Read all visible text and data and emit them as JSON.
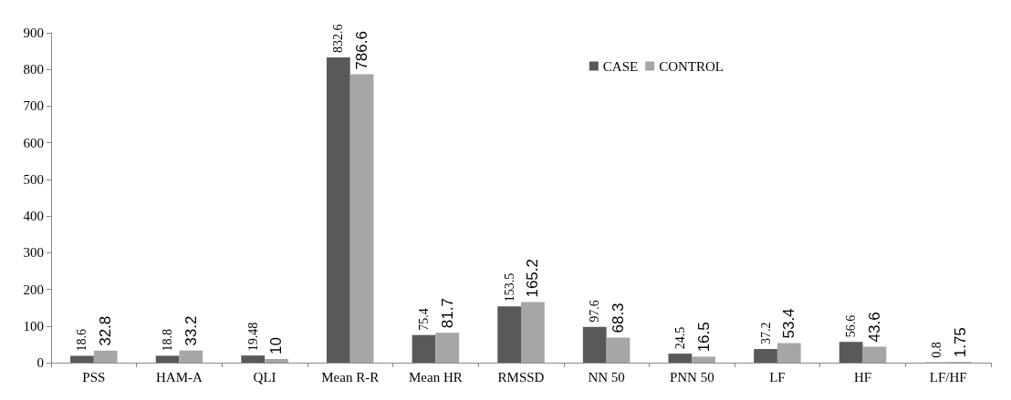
{
  "chart_data": {
    "type": "bar",
    "categories": [
      "PSS",
      "HAM-A",
      "QLI",
      "Mean R-R",
      "Mean HR",
      "RMSSD",
      "NN 50",
      "PNN 50",
      "LF",
      "HF",
      "LF/HF"
    ],
    "series": [
      {
        "name": "CASE",
        "color": "#595959",
        "values": [
          18.6,
          18.8,
          19.48,
          832.6,
          75.4,
          153.5,
          97.6,
          24.5,
          37.2,
          56.6,
          0.8
        ]
      },
      {
        "name": "CONTROL",
        "color": "#a6a6a6",
        "values": [
          32.8,
          33.2,
          10,
          786.6,
          81.7,
          165.2,
          68.3,
          16.5,
          53.4,
          43.6,
          1.75
        ]
      }
    ],
    "ylim": [
      0,
      900
    ],
    "yticks": [
      0,
      100,
      200,
      300,
      400,
      500,
      600,
      700,
      800,
      900
    ],
    "grid": false,
    "legend": "top right",
    "data_labels": true
  }
}
